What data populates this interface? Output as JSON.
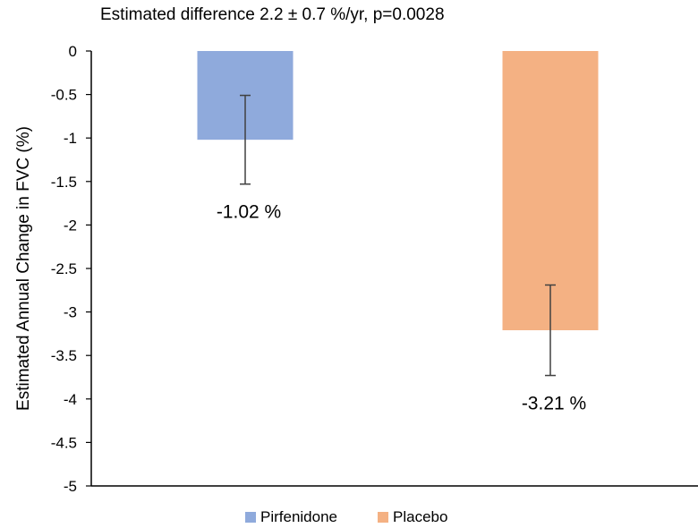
{
  "chart_data": {
    "type": "bar",
    "title": "Estimated difference 2.2 ± 0.7 %/yr, p=0.0028",
    "xlabel": "",
    "ylabel": "Estimated Annual Change in FVC (%)",
    "ylim": [
      -5,
      0
    ],
    "yticks": [
      0,
      -0.5,
      -1,
      -1.5,
      -2,
      -2.5,
      -3,
      -3.5,
      -4,
      -4.5,
      -5
    ],
    "ytick_labels": [
      "0",
      "-0.5",
      "-1",
      "-1.5",
      "-2",
      "-2.5",
      "-3",
      "-3.5",
      "-4",
      "-4.5",
      "-5"
    ],
    "grid": false,
    "legend_position": "bottom",
    "series": [
      {
        "name": "Pirfenidone",
        "value": -1.02,
        "error_low": -1.53,
        "error_high": -0.51,
        "label": "-1.02 %",
        "color": "#8FAADC"
      },
      {
        "name": "Placebo",
        "value": -3.21,
        "error_low": -3.73,
        "error_high": -2.69,
        "label": "-3.21 %",
        "color": "#F4B183"
      }
    ]
  }
}
